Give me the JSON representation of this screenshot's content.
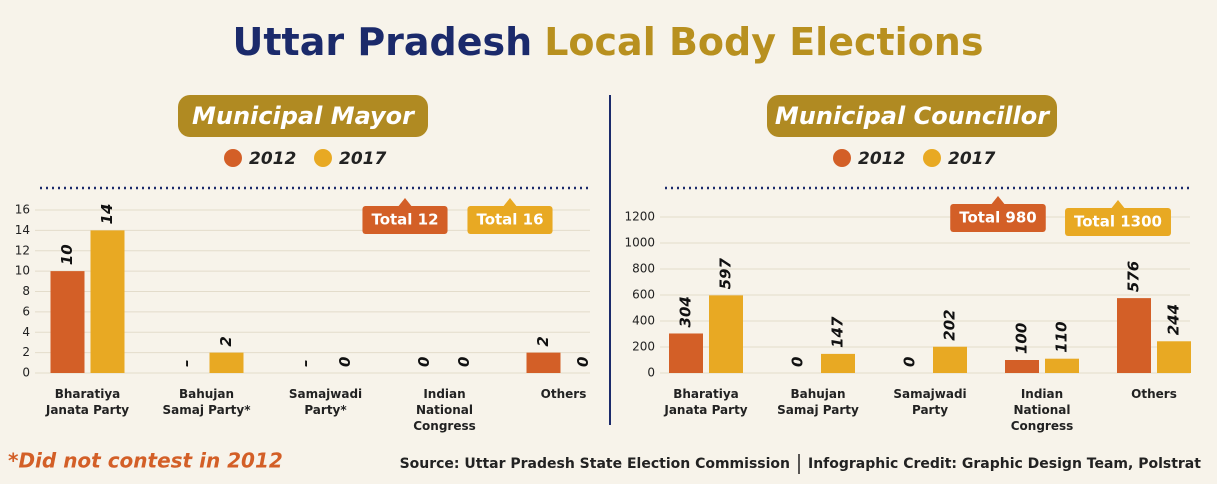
{
  "header": {
    "title_a": "Uttar Pradesh",
    "title_b": "Local Body Elections"
  },
  "chart_data": [
    {
      "type": "bar",
      "title": "Municipal Mayor",
      "categories": [
        "Bharatiya Janata Party",
        "Bahujan Samaj Party*",
        "Samajwadi Party*",
        "Indian National Congress",
        "Others"
      ],
      "series": [
        {
          "name": "2012",
          "color": "#d35f27",
          "values": [
            10,
            null,
            null,
            0,
            2
          ],
          "value_labels": [
            "10",
            "–",
            "–",
            "0",
            "2"
          ]
        },
        {
          "name": "2017",
          "color": "#e8a923",
          "values": [
            14,
            2,
            0,
            0,
            0
          ]
        }
      ],
      "ylim": [
        0,
        16
      ],
      "yticks": [
        0,
        2,
        4,
        6,
        8,
        10,
        12,
        14,
        16
      ],
      "grid": true,
      "annotations": [
        {
          "text": "Total 12",
          "color": "#d35f27"
        },
        {
          "text": "Total 16",
          "color": "#e8a923"
        }
      ]
    },
    {
      "type": "bar",
      "title": "Municipal Councillor",
      "categories": [
        "Bharatiya Janata Party",
        "Bahujan Samaj Party",
        "Samajwadi Party",
        "Indian National Congress",
        "Others"
      ],
      "series": [
        {
          "name": "2012",
          "color": "#d35f27",
          "values": [
            304,
            0,
            0,
            100,
            576
          ]
        },
        {
          "name": "2017",
          "color": "#e8a923",
          "values": [
            597,
            147,
            202,
            110,
            244
          ]
        }
      ],
      "ylim": [
        0,
        1200
      ],
      "yticks": [
        0,
        200,
        400,
        600,
        800,
        1000,
        1200
      ],
      "grid": true,
      "annotations": [
        {
          "text": "Total 980",
          "color": "#d35f27"
        },
        {
          "text": "Total 1300",
          "color": "#e8a923"
        }
      ]
    }
  ],
  "footer": {
    "note": "*Did not contest in 2012",
    "source": "Source: Uttar Pradesh State Election Commission",
    "credit": "Infographic Credit: Graphic Design Team, Polstrat"
  }
}
